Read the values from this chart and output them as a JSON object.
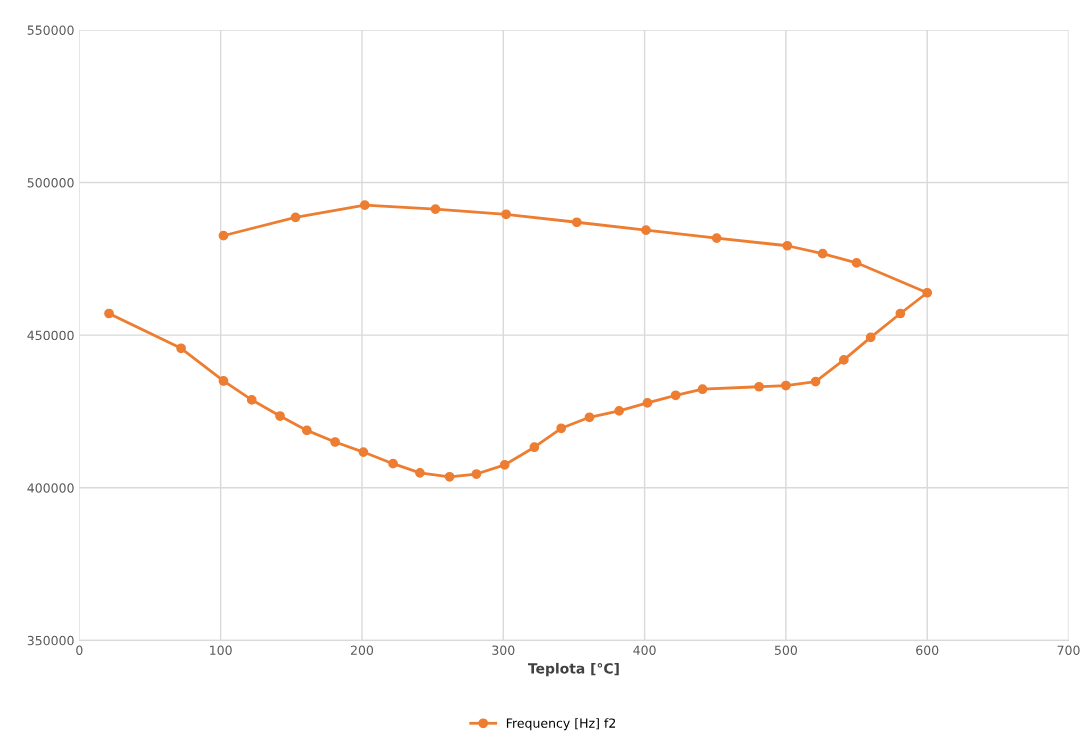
{
  "chart_data": {
    "type": "line",
    "xlabel": "Teplota [°C]",
    "series": [
      {
        "name": "Frequency [Hz] f2",
        "color": "#ed7d31",
        "x": [
          21,
          72,
          102,
          122,
          142,
          161,
          181,
          201,
          222,
          241,
          262,
          281,
          301,
          322,
          341,
          361,
          382,
          402,
          422,
          441,
          481,
          500,
          521,
          541,
          560,
          581,
          600,
          550,
          526,
          501,
          451,
          401,
          352,
          302,
          252,
          202,
          153,
          102
        ],
        "values": [
          457100,
          445700,
          435000,
          428800,
          423500,
          418800,
          415000,
          411700,
          407900,
          404900,
          403600,
          404500,
          407500,
          413300,
          419500,
          423100,
          425200,
          427800,
          430300,
          432300,
          433100,
          433500,
          434800,
          441900,
          449300,
          457100,
          463900,
          473700,
          476700,
          479300,
          481800,
          484400,
          487000,
          489600,
          491300,
          492600,
          488600,
          482600
        ]
      }
    ],
    "xlim": [
      0,
      700
    ],
    "xticks": [
      0,
      100,
      200,
      300,
      400,
      500,
      600,
      700
    ],
    "ylim": [
      350000,
      550000
    ],
    "yticks": [
      350000,
      400000,
      450000,
      500000,
      550000
    ],
    "grid": true,
    "legend": "bottom",
    "marker": "circle",
    "line_style": "solid"
  }
}
